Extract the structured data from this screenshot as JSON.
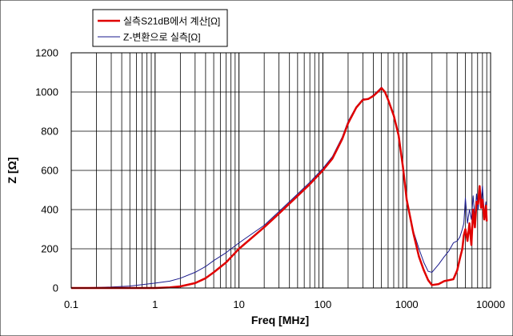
{
  "chart_data": {
    "type": "line",
    "title": "",
    "xlabel": "Freq [MHz]",
    "ylabel": "Z [Ω]",
    "x_scale": "log",
    "xlim": [
      0.1,
      10000
    ],
    "ylim": [
      0,
      1200
    ],
    "grid": true,
    "legend_position": "top-left",
    "x_ticks": [
      "0.1",
      "1",
      "10",
      "100",
      "1000",
      "10000"
    ],
    "y_ticks": [
      "0",
      "200",
      "400",
      "600",
      "800",
      "1000",
      "1200"
    ],
    "series": [
      {
        "name": "실측S21dB에서 계산[Ω]",
        "color": "#e00000",
        "points": [
          [
            0.1,
            0
          ],
          [
            1,
            0
          ],
          [
            1.5,
            3
          ],
          [
            2,
            8
          ],
          [
            3,
            25
          ],
          [
            4,
            50
          ],
          [
            5,
            80
          ],
          [
            7,
            130
          ],
          [
            10,
            200
          ],
          [
            20,
            310
          ],
          [
            30,
            380
          ],
          [
            50,
            470
          ],
          [
            70,
            530
          ],
          [
            100,
            600
          ],
          [
            130,
            660
          ],
          [
            170,
            760
          ],
          [
            200,
            840
          ],
          [
            250,
            920
          ],
          [
            300,
            960
          ],
          [
            350,
            965
          ],
          [
            400,
            980
          ],
          [
            450,
            1000
          ],
          [
            500,
            1020
          ],
          [
            550,
            1000
          ],
          [
            600,
            960
          ],
          [
            700,
            880
          ],
          [
            800,
            780
          ],
          [
            900,
            620
          ],
          [
            1000,
            450
          ],
          [
            1200,
            280
          ],
          [
            1400,
            160
          ],
          [
            1600,
            90
          ],
          [
            1800,
            40
          ],
          [
            2000,
            15
          ],
          [
            2400,
            20
          ],
          [
            2800,
            35
          ],
          [
            3200,
            40
          ],
          [
            3600,
            45
          ],
          [
            4000,
            90
          ],
          [
            4300,
            150
          ],
          [
            4600,
            200
          ],
          [
            4800,
            270
          ],
          [
            5000,
            300
          ],
          [
            5300,
            240
          ],
          [
            5600,
            330
          ],
          [
            5900,
            220
          ],
          [
            6200,
            400
          ],
          [
            6500,
            310
          ],
          [
            6800,
            440
          ],
          [
            7100,
            430
          ],
          [
            7400,
            520
          ],
          [
            7700,
            410
          ],
          [
            8000,
            450
          ],
          [
            8400,
            350
          ],
          [
            8800,
            420
          ],
          [
            9000,
            340
          ]
        ]
      },
      {
        "name": "Z-변환으로 실측[Ω]",
        "color": "#1a1a8c",
        "points": [
          [
            0.1,
            0
          ],
          [
            0.3,
            5
          ],
          [
            0.5,
            10
          ],
          [
            1,
            25
          ],
          [
            1.5,
            35
          ],
          [
            2,
            50
          ],
          [
            3,
            80
          ],
          [
            4,
            110
          ],
          [
            5,
            140
          ],
          [
            7,
            180
          ],
          [
            10,
            230
          ],
          [
            20,
            320
          ],
          [
            30,
            390
          ],
          [
            50,
            480
          ],
          [
            70,
            540
          ],
          [
            100,
            610
          ],
          [
            130,
            670
          ],
          [
            170,
            770
          ],
          [
            200,
            850
          ],
          [
            250,
            925
          ],
          [
            300,
            965
          ],
          [
            350,
            965
          ],
          [
            400,
            985
          ],
          [
            450,
            1005
          ],
          [
            500,
            1025
          ],
          [
            550,
            1000
          ],
          [
            600,
            965
          ],
          [
            700,
            880
          ],
          [
            800,
            770
          ],
          [
            900,
            610
          ],
          [
            1000,
            450
          ],
          [
            1200,
            290
          ],
          [
            1400,
            200
          ],
          [
            1600,
            130
          ],
          [
            1800,
            85
          ],
          [
            2000,
            80
          ],
          [
            2400,
            120
          ],
          [
            2800,
            160
          ],
          [
            3200,
            190
          ],
          [
            3600,
            230
          ],
          [
            4000,
            240
          ],
          [
            4300,
            260
          ],
          [
            4600,
            300
          ],
          [
            4800,
            330
          ],
          [
            5000,
            460
          ],
          [
            5300,
            330
          ],
          [
            5600,
            400
          ],
          [
            5900,
            350
          ],
          [
            6200,
            470
          ],
          [
            6500,
            360
          ],
          [
            6800,
            480
          ],
          [
            7100,
            400
          ],
          [
            7400,
            490
          ],
          [
            7700,
            430
          ],
          [
            8000,
            520
          ],
          [
            8400,
            380
          ],
          [
            8800,
            440
          ],
          [
            9000,
            360
          ]
        ]
      }
    ]
  }
}
